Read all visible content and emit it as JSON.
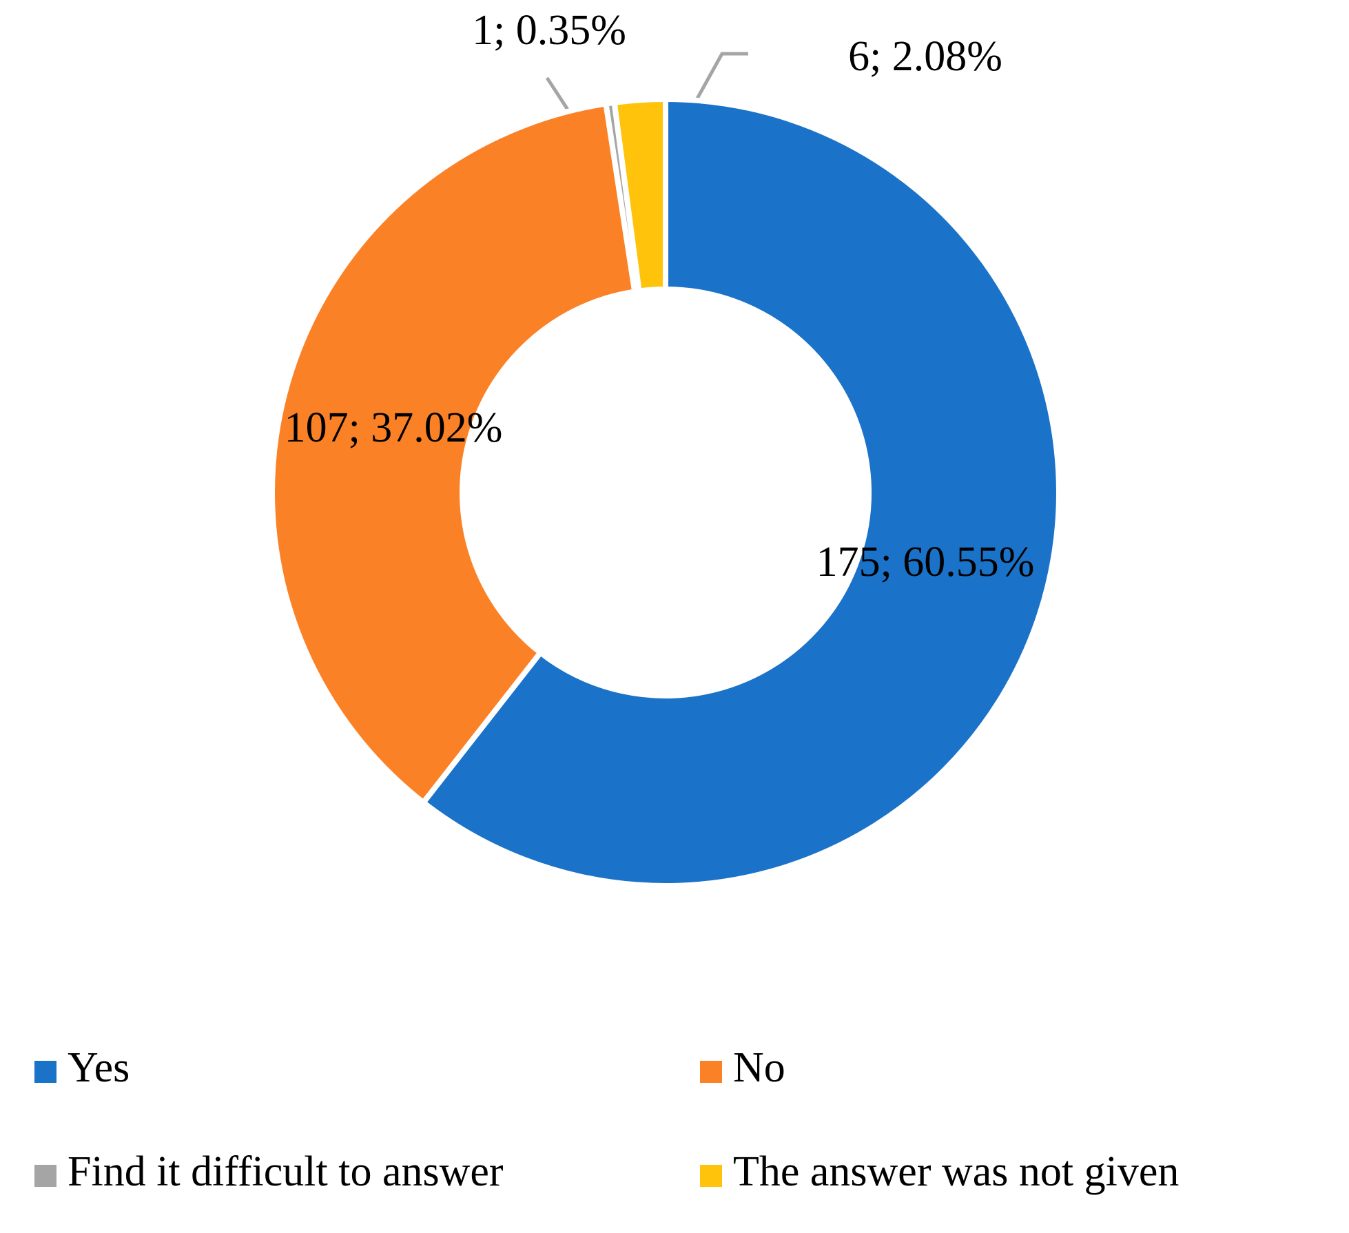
{
  "chart_data": {
    "type": "donut",
    "categories": [
      "Yes",
      "No",
      "Find it difficult to answer",
      "The answer was not given"
    ],
    "values": [
      175,
      107,
      1,
      6
    ],
    "value_labels": [
      "175; 60.55%",
      "107; 37.02%",
      "1; 0.35%",
      "6; 2.08%"
    ],
    "colors": [
      "#1a73c8",
      "#fb8127",
      "#a5a5a5",
      "#fec30a"
    ],
    "legend": "bottom"
  }
}
